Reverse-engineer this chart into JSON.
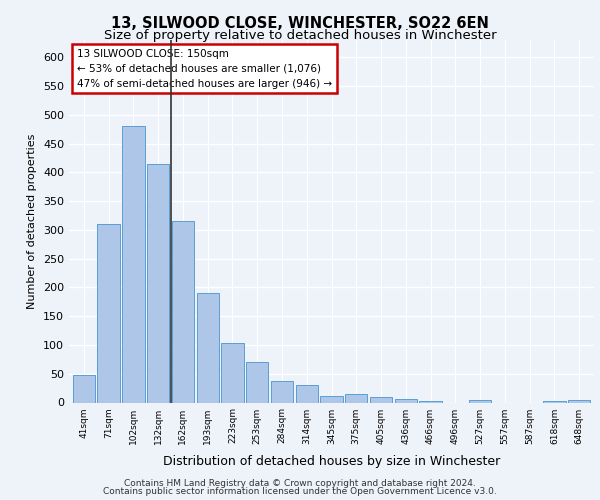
{
  "title1": "13, SILWOOD CLOSE, WINCHESTER, SO22 6EN",
  "title2": "Size of property relative to detached houses in Winchester",
  "xlabel": "Distribution of detached houses by size in Winchester",
  "ylabel": "Number of detached properties",
  "categories": [
    "41sqm",
    "71sqm",
    "102sqm",
    "132sqm",
    "162sqm",
    "193sqm",
    "223sqm",
    "253sqm",
    "284sqm",
    "314sqm",
    "345sqm",
    "375sqm",
    "405sqm",
    "436sqm",
    "466sqm",
    "496sqm",
    "527sqm",
    "557sqm",
    "587sqm",
    "618sqm",
    "648sqm"
  ],
  "values": [
    47,
    311,
    480,
    415,
    315,
    191,
    104,
    70,
    38,
    31,
    12,
    14,
    9,
    6,
    3,
    0,
    5,
    0,
    0,
    3,
    5
  ],
  "bar_color": "#aec6e8",
  "bar_edge_color": "#5a9fd4",
  "annotation_title": "13 SILWOOD CLOSE: 150sqm",
  "annotation_line1": "← 53% of detached houses are smaller (1,076)",
  "annotation_line2": "47% of semi-detached houses are larger (946) →",
  "annotation_box_edge_color": "#cc0000",
  "footer1": "Contains HM Land Registry data © Crown copyright and database right 2024.",
  "footer2": "Contains public sector information licensed under the Open Government Licence v3.0.",
  "ylim": [
    0,
    630
  ],
  "yticks": [
    0,
    50,
    100,
    150,
    200,
    250,
    300,
    350,
    400,
    450,
    500,
    550,
    600
  ],
  "background_color": "#eef2f9",
  "grid_color": "#ffffff"
}
